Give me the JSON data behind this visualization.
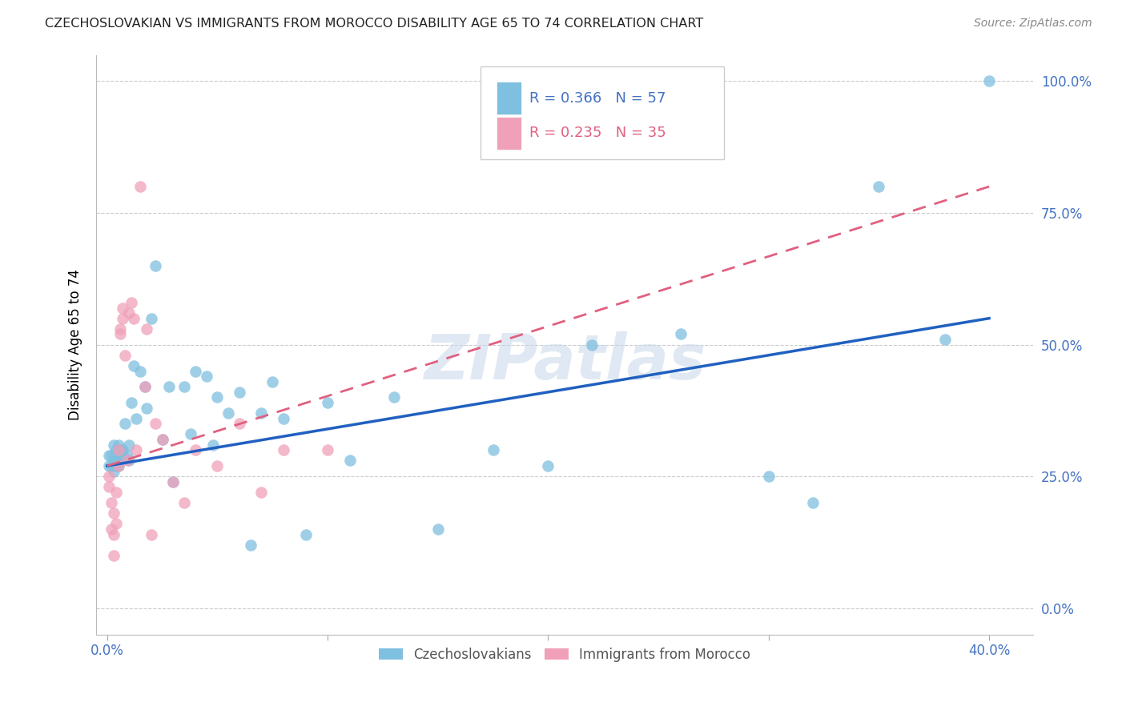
{
  "title": "CZECHOSLOVAKIAN VS IMMIGRANTS FROM MOROCCO DISABILITY AGE 65 TO 74 CORRELATION CHART",
  "source": "Source: ZipAtlas.com",
  "ylabel": "Disability Age 65 to 74",
  "ylabel_ticks": [
    "0.0%",
    "25.0%",
    "50.0%",
    "75.0%",
    "100.0%"
  ],
  "ylabel_vals": [
    0.0,
    0.25,
    0.5,
    0.75,
    1.0
  ],
  "xlabel_ticks": [
    "0.0%",
    "",
    "",
    "",
    "40.0%"
  ],
  "xlabel_vals": [
    0.0,
    0.1,
    0.2,
    0.3,
    0.4
  ],
  "xlim": [
    -0.005,
    0.42
  ],
  "ylim": [
    -0.05,
    1.05
  ],
  "blue_R": 0.366,
  "blue_N": 57,
  "pink_R": 0.235,
  "pink_N": 35,
  "legend_label_blue": "Czechoslovakians",
  "legend_label_pink": "Immigrants from Morocco",
  "watermark": "ZIPatlas",
  "blue_color": "#7fbfdf",
  "pink_color": "#f0a0b8",
  "line_blue": "#2060c0",
  "line_pink": "#e06080",
  "blue_scatter_x": [
    0.001,
    0.001,
    0.002,
    0.002,
    0.003,
    0.003,
    0.003,
    0.004,
    0.004,
    0.005,
    0.005,
    0.005,
    0.006,
    0.006,
    0.007,
    0.007,
    0.008,
    0.009,
    0.01,
    0.01,
    0.011,
    0.012,
    0.013,
    0.015,
    0.017,
    0.018,
    0.02,
    0.022,
    0.025,
    0.028,
    0.03,
    0.035,
    0.038,
    0.04,
    0.045,
    0.048,
    0.05,
    0.055,
    0.06,
    0.065,
    0.07,
    0.075,
    0.08,
    0.09,
    0.1,
    0.11,
    0.13,
    0.15,
    0.175,
    0.2,
    0.22,
    0.26,
    0.3,
    0.32,
    0.35,
    0.38,
    0.4
  ],
  "blue_scatter_y": [
    0.29,
    0.27,
    0.29,
    0.27,
    0.31,
    0.28,
    0.26,
    0.3,
    0.27,
    0.29,
    0.31,
    0.27,
    0.3,
    0.28,
    0.3,
    0.29,
    0.35,
    0.29,
    0.28,
    0.31,
    0.39,
    0.46,
    0.36,
    0.45,
    0.42,
    0.38,
    0.55,
    0.65,
    0.32,
    0.42,
    0.24,
    0.42,
    0.33,
    0.45,
    0.44,
    0.31,
    0.4,
    0.37,
    0.41,
    0.12,
    0.37,
    0.43,
    0.36,
    0.14,
    0.39,
    0.28,
    0.4,
    0.15,
    0.3,
    0.27,
    0.5,
    0.52,
    0.25,
    0.2,
    0.8,
    0.51,
    1.0
  ],
  "pink_scatter_x": [
    0.001,
    0.001,
    0.002,
    0.002,
    0.003,
    0.003,
    0.003,
    0.004,
    0.004,
    0.005,
    0.005,
    0.006,
    0.006,
    0.007,
    0.007,
    0.008,
    0.009,
    0.01,
    0.011,
    0.012,
    0.013,
    0.015,
    0.017,
    0.018,
    0.02,
    0.022,
    0.025,
    0.03,
    0.035,
    0.04,
    0.05,
    0.06,
    0.07,
    0.08,
    0.1
  ],
  "pink_scatter_y": [
    0.25,
    0.23,
    0.2,
    0.15,
    0.18,
    0.14,
    0.1,
    0.22,
    0.16,
    0.3,
    0.27,
    0.53,
    0.52,
    0.57,
    0.55,
    0.48,
    0.28,
    0.56,
    0.58,
    0.55,
    0.3,
    0.8,
    0.42,
    0.53,
    0.14,
    0.35,
    0.32,
    0.24,
    0.2,
    0.3,
    0.27,
    0.35,
    0.22,
    0.3,
    0.3
  ]
}
